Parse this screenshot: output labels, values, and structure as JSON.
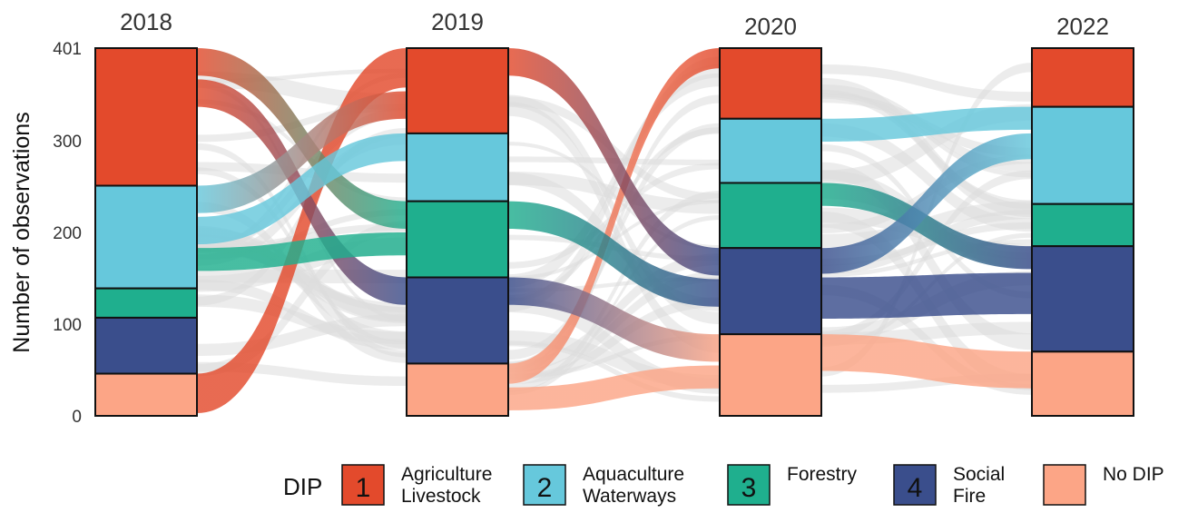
{
  "chart_data": {
    "type": "alluvial",
    "ylabel": "Number of observations",
    "y_ticks": [
      "0",
      "100",
      "200",
      "300",
      "401"
    ],
    "ylim": [
      0,
      401
    ],
    "years": [
      "2018",
      "2019",
      "2020",
      "2022"
    ],
    "legend": {
      "title": "DIP",
      "placement": "bottom",
      "items": [
        {
          "key": "agri",
          "number": "1",
          "line1": "Agriculture",
          "line2": "Livestock"
        },
        {
          "key": "aqua",
          "number": "2",
          "line1": "Aquaculture",
          "line2": "Waterways"
        },
        {
          "key": "forest",
          "number": "3",
          "line1": "Forestry",
          "line2": ""
        },
        {
          "key": "social",
          "number": "4",
          "line1": "Social",
          "line2": "Fire"
        },
        {
          "key": "nodip",
          "number": "",
          "line1": "No DIP",
          "line2": ""
        }
      ]
    },
    "colors": {
      "agri": "#E34A2C",
      "aqua": "#66C8DC",
      "forest": "#1FAF8E",
      "social": "#3A4E8C",
      "nodip": "#FCA586",
      "other_flows": "#DCDCDC"
    },
    "stack_order_top_to_bottom": [
      "agri",
      "aqua",
      "forest",
      "social",
      "nodip"
    ],
    "column_values": {
      "2018": {
        "agri": 150,
        "aqua": 112,
        "forest": 32,
        "social": 61,
        "nodip": 46
      },
      "2019": {
        "agri": 93,
        "aqua": 74,
        "forest": 83,
        "social": 94,
        "nodip": 57
      },
      "2020": {
        "agri": 77,
        "aqua": 70,
        "forest": 71,
        "social": 94,
        "nodip": 89
      },
      "2022": {
        "agri": 64,
        "aqua": 106,
        "forest": 46,
        "social": 115,
        "nodip": 70
      }
    },
    "highlighted_flows": [
      {
        "from": "2018",
        "to": "2019",
        "from_cat": "nodip",
        "to_cat": "agri",
        "value": 43,
        "color": "agri"
      },
      {
        "from": "2018",
        "to": "2019",
        "from_cat": "agri",
        "to_cat": "forest",
        "value": 30,
        "color": "agri"
      },
      {
        "from": "2018",
        "to": "2019",
        "from_cat": "agri",
        "to_cat": "social",
        "value": 30,
        "color": "agri"
      },
      {
        "from": "2018",
        "to": "2019",
        "from_cat": "aqua",
        "to_cat": "agri",
        "value": 30,
        "color": "aqua"
      },
      {
        "from": "2018",
        "to": "2019",
        "from_cat": "aqua",
        "to_cat": "aqua",
        "value": 30,
        "color": "aqua"
      },
      {
        "from": "2018",
        "to": "2019",
        "from_cat": "aqua",
        "to_cat": "forest",
        "value": 25,
        "color": "forest"
      },
      {
        "from": "2019",
        "to": "2020",
        "from_cat": "nodip",
        "to_cat": "agri",
        "value": 22,
        "color": "nodip"
      },
      {
        "from": "2019",
        "to": "2020",
        "from_cat": "agri",
        "to_cat": "social",
        "value": 30,
        "color": "agri"
      },
      {
        "from": "2019",
        "to": "2020",
        "from_cat": "forest",
        "to_cat": "social",
        "value": 30,
        "color": "forest"
      },
      {
        "from": "2019",
        "to": "2020",
        "from_cat": "social",
        "to_cat": "nodip",
        "value": 30,
        "color": "social"
      },
      {
        "from": "2019",
        "to": "2020",
        "from_cat": "nodip",
        "to_cat": "nodip",
        "value": 25,
        "color": "nodip"
      },
      {
        "from": "2020",
        "to": "2022",
        "from_cat": "aqua",
        "to_cat": "aqua",
        "value": 25,
        "color": "aqua"
      },
      {
        "from": "2020",
        "to": "2022",
        "from_cat": "forest",
        "to_cat": "social",
        "value": 25,
        "color": "forest"
      },
      {
        "from": "2020",
        "to": "2022",
        "from_cat": "social",
        "to_cat": "aqua",
        "value": 28,
        "color": "social"
      },
      {
        "from": "2020",
        "to": "2022",
        "from_cat": "social",
        "to_cat": "social",
        "value": 45,
        "color": "social"
      },
      {
        "from": "2020",
        "to": "2022",
        "from_cat": "nodip",
        "to_cat": "nodip",
        "value": 40,
        "color": "nodip"
      }
    ]
  }
}
